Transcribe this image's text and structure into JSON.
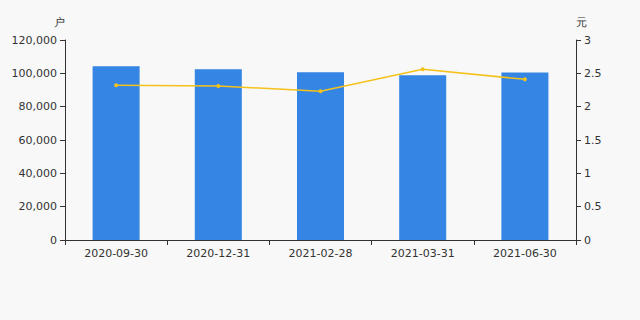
{
  "chart_data": {
    "type": "bar",
    "categories": [
      "2020-09-30",
      "2020-12-31",
      "2021-02-28",
      "2021-03-31",
      "2021-06-30"
    ],
    "y_label": "户",
    "y2_label": "元",
    "series": [
      {
        "type": "bar",
        "color": "#3485e4",
        "values": [
          104200,
          102500,
          100700,
          98800,
          100500
        ]
      },
      {
        "type": "line",
        "axis": "y2",
        "color": "#f5c21b",
        "marker": "circle",
        "values": [
          2.32,
          2.31,
          2.23,
          2.56,
          2.41
        ]
      }
    ],
    "ylim": [
      0,
      120000
    ],
    "yticks": [
      0,
      {
        "value": 20000,
        "label": "20,000"
      },
      {
        "value": 40000,
        "label": "40,000"
      },
      {
        "value": 60000,
        "label": "60,000"
      },
      {
        "value": 80000,
        "label": "80,000"
      },
      {
        "value": 100000,
        "label": "100,000"
      },
      {
        "value": 120000,
        "label": "120,000"
      }
    ],
    "y2lim": [
      0,
      3
    ],
    "y2ticks": [
      0,
      0.5,
      1,
      1.5,
      2,
      2.5,
      3
    ],
    "grid": false
  }
}
